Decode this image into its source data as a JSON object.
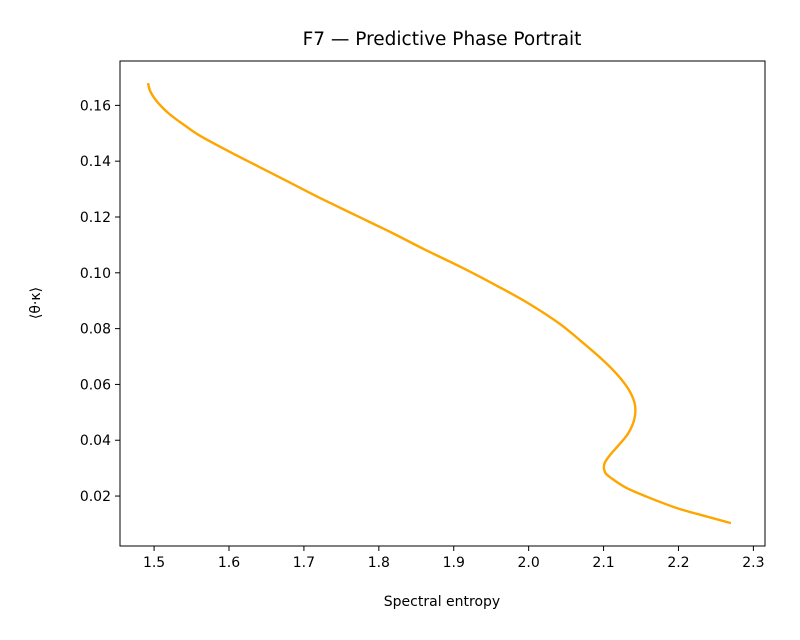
{
  "chart_data": {
    "type": "line",
    "title": "F7 — Predictive Phase Portrait",
    "xlabel": "Spectral entropy",
    "ylabel": "⟨θ·κ⟩",
    "xlim": [
      1.4545,
      2.3155
    ],
    "ylim": [
      0.0021,
      0.1759
    ],
    "xticks": [
      1.5,
      1.6,
      1.7,
      1.8,
      1.9,
      2.0,
      2.1,
      2.2,
      2.3
    ],
    "xtick_labels": [
      "1.5",
      "1.6",
      "1.7",
      "1.8",
      "1.9",
      "2.0",
      "2.1",
      "2.2",
      "2.3"
    ],
    "yticks": [
      0.02,
      0.04,
      0.06,
      0.08,
      0.1,
      0.12,
      0.14,
      0.16
    ],
    "ytick_labels": [
      "0.02",
      "0.04",
      "0.06",
      "0.08",
      "0.10",
      "0.12",
      "0.14",
      "0.16"
    ],
    "grid": false,
    "legend": false,
    "colors": {
      "line": "#ffa500",
      "axes": "#000000",
      "background": "#ffffff"
    },
    "series": [
      {
        "x": [
          1.492,
          1.495,
          1.505,
          1.52,
          1.54,
          1.562,
          1.6,
          1.64,
          1.68,
          1.72,
          1.77,
          1.82,
          1.86,
          1.91,
          1.96,
          2.0,
          2.04,
          2.07,
          2.1,
          2.12,
          2.135,
          2.142,
          2.141,
          2.133,
          2.121,
          2.108,
          2.101,
          2.102,
          2.11,
          2.13,
          2.16,
          2.2,
          2.24,
          2.27
        ],
        "y": [
          0.168,
          0.165,
          0.161,
          0.157,
          0.153,
          0.149,
          0.1435,
          0.138,
          0.1325,
          0.127,
          0.1205,
          0.114,
          0.1085,
          0.102,
          0.095,
          0.089,
          0.082,
          0.0755,
          0.0685,
          0.063,
          0.0575,
          0.0525,
          0.0475,
          0.0425,
          0.0385,
          0.0345,
          0.0315,
          0.0285,
          0.0265,
          0.023,
          0.0195,
          0.0155,
          0.0125,
          0.0103
        ]
      }
    ]
  }
}
